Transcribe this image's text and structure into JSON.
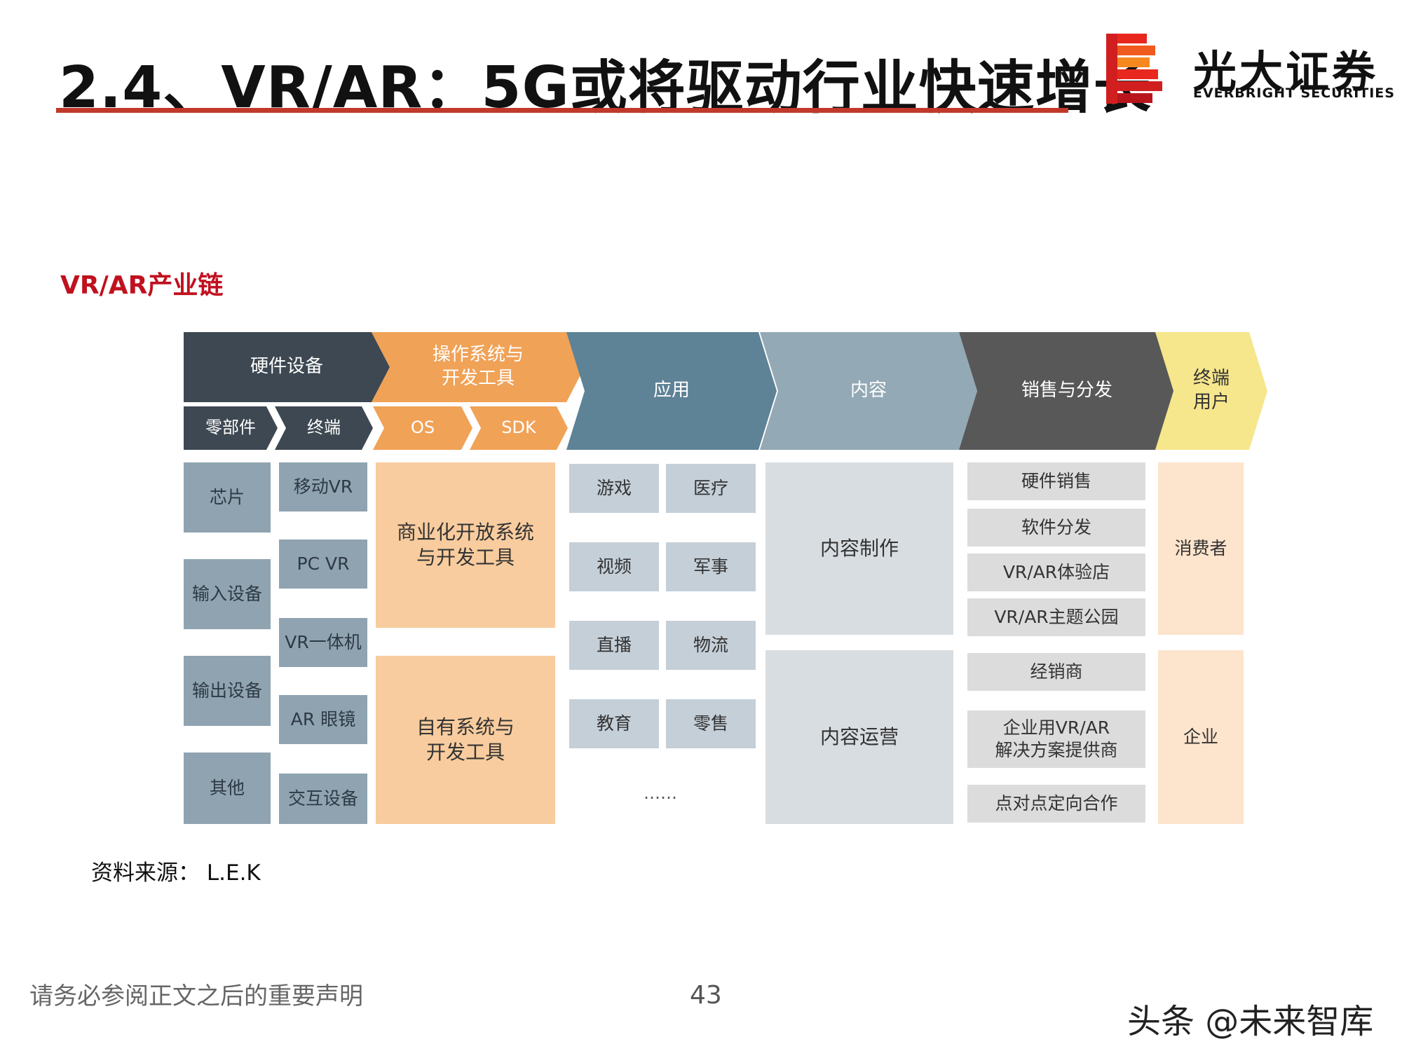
{
  "header": {
    "title": "2.4、VR/AR：5G或将驱动行业快速增长",
    "logo_cn": "光大证券",
    "logo_en": "EVERBRIGHT SECURITIES"
  },
  "subtitle": "VR/AR产业链",
  "diagram": {
    "headers": {
      "hardware": "硬件设备",
      "os": "操作系统与\n开发工具",
      "apps": "应用",
      "content": "内容",
      "sales": "销售与分发",
      "end_users": "终端\n用户"
    },
    "subheaders": {
      "components": "零部件",
      "terminal": "终端",
      "os": "OS",
      "sdk": "SDK"
    },
    "components": [
      "芯片",
      "输入设备",
      "输出设备",
      "其他"
    ],
    "terminals": [
      "移动VR",
      "PC VR",
      "VR一体机",
      "AR 眼镜",
      "交互设备"
    ],
    "os_tools": [
      "商业化开放系统\n与开发工具",
      "自有系统与\n开发工具"
    ],
    "apps": [
      "游戏",
      "医疗",
      "视频",
      "军事",
      "直播",
      "物流",
      "教育",
      "零售"
    ],
    "apps_more": "……",
    "content": [
      "内容制作",
      "内容运营"
    ],
    "sales": [
      "硬件销售",
      "软件分发",
      "VR/AR体验店",
      "VR/AR主题公园",
      "经销商",
      "企业用VR/AR\n解决方案提供商",
      "点对点定向合作"
    ],
    "end_users": [
      "消费者",
      "企业"
    ]
  },
  "source": "资料来源： L.E.K",
  "footer": {
    "disclaimer": "请务必参阅正文之后的重要声明",
    "page": "43",
    "watermark": "头条 @未来智库"
  },
  "colors": {
    "title_rule": "#c0392b",
    "subtitle": "#c0111f",
    "hardware": "#3d4852",
    "os": "#f0a257",
    "apps": "#5e8296",
    "content": "#93a9b5",
    "sales": "#585858",
    "end_users": "#f6e68c"
  }
}
